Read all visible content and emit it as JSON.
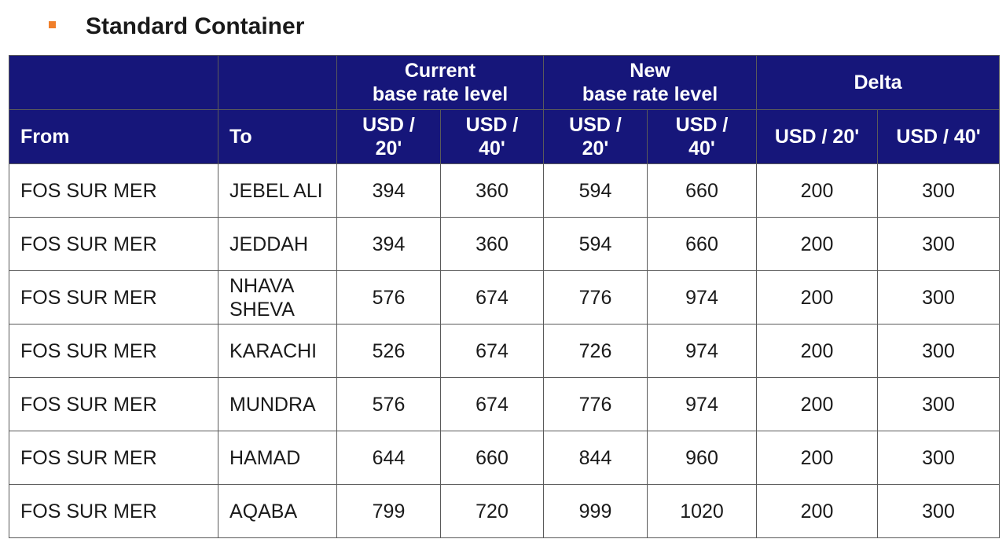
{
  "heading": {
    "icon": "orange-square-bullet-icon",
    "bullet_color": "#f07f2a",
    "title": "Standard Container"
  },
  "colors": {
    "header_background": "#16167a",
    "header_text": "#ffffff",
    "grid_lines": "#5a5a5a"
  },
  "table": {
    "group_headers": {
      "current": "Current\nbase rate level",
      "new": "New\nbase rate level",
      "delta": "Delta"
    },
    "columns": {
      "from": "From",
      "to": "To",
      "cur20": "USD / 20'",
      "cur40": "USD / 40'",
      "new20": "USD / 20'",
      "new40": "USD / 40'",
      "delta20": "USD / 20'",
      "delta40": "USD / 40'"
    },
    "rows": [
      {
        "from": "FOS SUR MER",
        "to": "JEBEL ALI",
        "cur20": "394",
        "cur40": "360",
        "new20": "594",
        "new40": "660",
        "delta20": "200",
        "delta40": "300"
      },
      {
        "from": "FOS SUR MER",
        "to": "JEDDAH",
        "cur20": "394",
        "cur40": "360",
        "new20": "594",
        "new40": "660",
        "delta20": "200",
        "delta40": "300"
      },
      {
        "from": "FOS SUR MER",
        "to": "NHAVA SHEVA",
        "cur20": "576",
        "cur40": "674",
        "new20": "776",
        "new40": "974",
        "delta20": "200",
        "delta40": "300"
      },
      {
        "from": "FOS SUR MER",
        "to": "KARACHI",
        "cur20": "526",
        "cur40": "674",
        "new20": "726",
        "new40": "974",
        "delta20": "200",
        "delta40": "300"
      },
      {
        "from": "FOS SUR MER",
        "to": "MUNDRA",
        "cur20": "576",
        "cur40": "674",
        "new20": "776",
        "new40": "974",
        "delta20": "200",
        "delta40": "300"
      },
      {
        "from": "FOS SUR MER",
        "to": "HAMAD",
        "cur20": "644",
        "cur40": "660",
        "new20": "844",
        "new40": "960",
        "delta20": "200",
        "delta40": "300"
      },
      {
        "from": "FOS SUR MER",
        "to": "AQABA",
        "cur20": "799",
        "cur40": "720",
        "new20": "999",
        "new40": "1020",
        "delta20": "200",
        "delta40": "300"
      }
    ]
  }
}
